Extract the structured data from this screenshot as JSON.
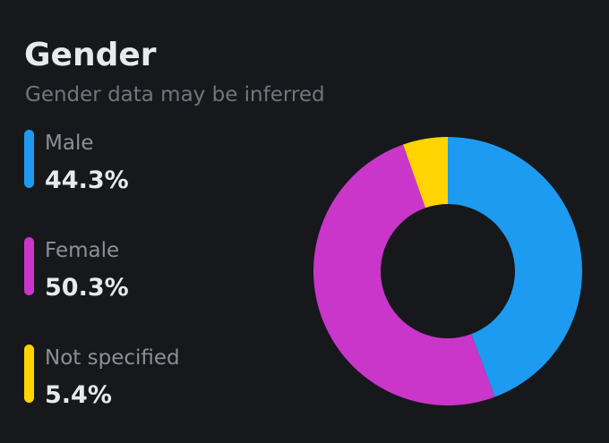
{
  "chart_data": {
    "type": "donut",
    "title": "Gender",
    "subtitle": "Gender data may be inferred",
    "categories": [
      "Male",
      "Female",
      "Not specified"
    ],
    "values": [
      44.3,
      50.3,
      5.4
    ],
    "value_labels": [
      "44.3%",
      "50.3%",
      "5.4%"
    ],
    "colors": [
      "#1d9bf0",
      "#c936c9",
      "#ffd400"
    ]
  }
}
